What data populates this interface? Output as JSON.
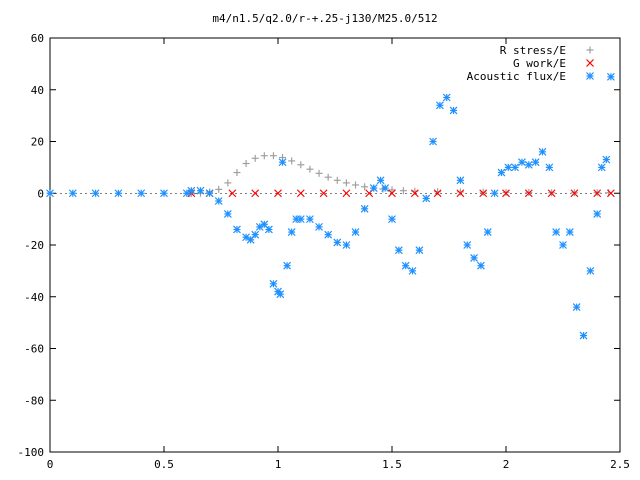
{
  "chart_data": {
    "type": "scatter",
    "title": "m4/n1.5/q2.0/r-+.25-j130/M25.0/512",
    "xlabel": "",
    "ylabel": "",
    "xlim": [
      0,
      2.5
    ],
    "ylim": [
      -100,
      60
    ],
    "x_ticks": [
      "0",
      "0.5",
      "1",
      "1.5",
      "2",
      "2.5"
    ],
    "y_ticks": [
      "60",
      "40",
      "20",
      "0",
      "-20",
      "-40",
      "-60",
      "-80",
      "-100"
    ],
    "legend_position": "top-right",
    "series": [
      {
        "name": "R stress/E",
        "color": "#a0a0a0",
        "marker": "plus",
        "x": [
          0.62,
          0.66,
          0.7,
          0.74,
          0.78,
          0.82,
          0.86,
          0.9,
          0.94,
          0.98,
          1.02,
          1.06,
          1.1,
          1.14,
          1.18,
          1.22,
          1.26,
          1.3,
          1.34,
          1.38,
          1.42,
          1.46,
          1.5,
          1.55,
          1.6,
          1.7,
          1.8,
          1.9,
          2.0,
          2.1,
          2.2,
          2.3,
          2.4,
          2.45
        ],
        "y": [
          0,
          0,
          0.5,
          1.5,
          4,
          8,
          11.5,
          13.5,
          14.5,
          14.5,
          13.8,
          12.5,
          11,
          9.3,
          7.7,
          6.2,
          5,
          4,
          3.2,
          2.5,
          2,
          1.6,
          1.3,
          1,
          0.8,
          0.6,
          0.5,
          0.4,
          0.3,
          0.3,
          0.2,
          0.2,
          0.2,
          0.2
        ]
      },
      {
        "name": "G work/E",
        "color": "#ff0000",
        "marker": "cross",
        "x": [
          0.62,
          0.7,
          0.8,
          0.9,
          1.0,
          1.1,
          1.2,
          1.3,
          1.4,
          1.5,
          1.6,
          1.7,
          1.8,
          1.9,
          2.0,
          2.1,
          2.2,
          2.3,
          2.4,
          2.46
        ],
        "y": [
          0,
          0,
          0,
          0,
          0,
          0,
          0,
          0,
          0,
          0,
          0,
          0,
          0,
          0,
          0,
          0,
          0,
          0,
          0,
          0
        ]
      },
      {
        "name": "Acoustic flux/E",
        "color": "#1e90ff",
        "marker": "star",
        "x": [
          0,
          0.1,
          0.2,
          0.3,
          0.4,
          0.5,
          0.6,
          0.62,
          0.66,
          0.7,
          0.74,
          0.78,
          0.82,
          0.86,
          0.88,
          0.9,
          0.92,
          0.94,
          0.96,
          0.98,
          1.0,
          1.01,
          1.02,
          1.04,
          1.06,
          1.08,
          1.1,
          1.14,
          1.18,
          1.22,
          1.26,
          1.3,
          1.34,
          1.38,
          1.42,
          1.45,
          1.47,
          1.5,
          1.53,
          1.56,
          1.59,
          1.62,
          1.65,
          1.68,
          1.71,
          1.74,
          1.77,
          1.8,
          1.83,
          1.86,
          1.89,
          1.92,
          1.95,
          1.98,
          2.01,
          2.04,
          2.07,
          2.1,
          2.13,
          2.16,
          2.19,
          2.22,
          2.25,
          2.28,
          2.31,
          2.34,
          2.37,
          2.4,
          2.42,
          2.44,
          2.46
        ],
        "y": [
          0,
          0,
          0,
          0,
          0,
          0,
          0,
          1,
          1,
          0,
          -3,
          -8,
          -14,
          -17,
          -18,
          -16,
          -13,
          -12,
          -14,
          -35,
          -38,
          -39,
          12,
          -28,
          -15,
          -10,
          -10,
          -10,
          -13,
          -16,
          -19,
          -20,
          -15,
          -6,
          2,
          5,
          2,
          -10,
          -22,
          -28,
          -30,
          -22,
          -2,
          20,
          34,
          37,
          32,
          5,
          -20,
          -25,
          -28,
          -15,
          0,
          8,
          10,
          10,
          12,
          11,
          12,
          16,
          10,
          -15,
          -20,
          -15,
          -44,
          -55,
          -30,
          -8,
          10,
          13,
          45
        ]
      }
    ]
  }
}
